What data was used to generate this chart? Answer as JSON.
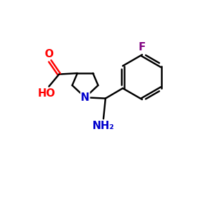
{
  "background_color": "#ffffff",
  "bond_color": "#000000",
  "N_color": "#0000cd",
  "O_color": "#ff0000",
  "F_color": "#800080",
  "NH2_color": "#0000cd",
  "line_width": 1.8,
  "figsize": [
    3.0,
    3.0
  ],
  "dpi": 100,
  "xlim": [
    0,
    10
  ],
  "ylim": [
    0,
    10
  ]
}
